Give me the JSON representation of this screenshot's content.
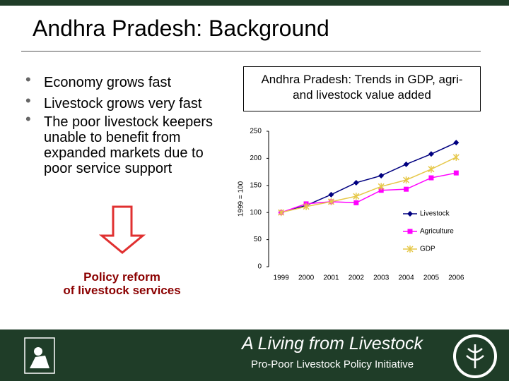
{
  "slide": {
    "title": "Andhra Pradesh: Background",
    "bullets": [
      "Economy grows fast",
      "Livestock grows very fast",
      "The poor livestock keepers unable to benefit from expanded markets due to poor service support"
    ],
    "policy_reform": [
      "Policy reform",
      "of livestock services"
    ]
  },
  "chart_data": {
    "type": "line",
    "title": "Andhra Pradesh: Trends in GDP, agri- and livestock value added",
    "y_label": "1999 = 100",
    "categories": [
      "1999",
      "2000",
      "2001",
      "2002",
      "2003",
      "2004",
      "2005",
      "2006"
    ],
    "series": [
      {
        "name": "Livestock",
        "color": "#000080",
        "marker": "diamond",
        "values": [
          100,
          113,
          133,
          155,
          168,
          189,
          208,
          229
        ]
      },
      {
        "name": "Agriculture",
        "color": "#ff00ff",
        "marker": "square",
        "values": [
          100,
          116,
          120,
          118,
          141,
          143,
          164,
          173
        ]
      },
      {
        "name": "GDP",
        "color": "#e6c84a",
        "marker": "star",
        "values": [
          100,
          111,
          120,
          130,
          148,
          160,
          180,
          202
        ]
      }
    ],
    "ylim": [
      0,
      250
    ],
    "yticks": [
      0,
      50,
      100,
      150,
      200,
      250
    ],
    "grid": false
  },
  "footer": {
    "title": "A Living from Livestock",
    "subtitle": "Pro-Poor Livestock Policy Initiative"
  }
}
